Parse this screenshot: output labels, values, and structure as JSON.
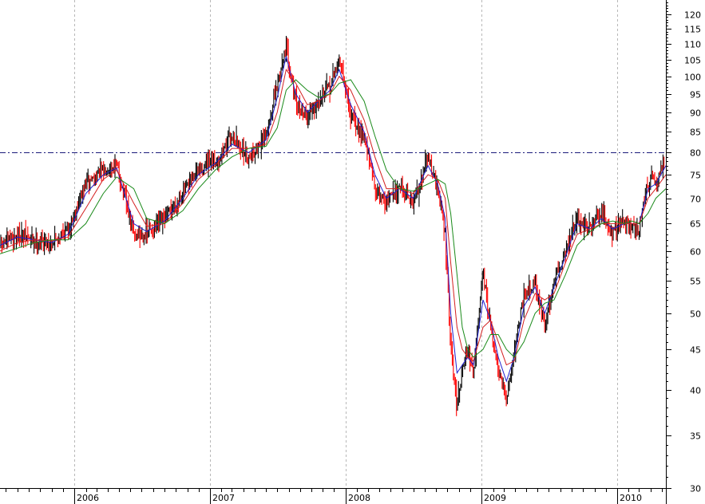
{
  "chart_data": {
    "type": "line",
    "chart_style": "daily OHLC bars with moving averages",
    "title": "",
    "xlabel": "",
    "ylabel": "",
    "y_scale": "log",
    "ylim": [
      30,
      125
    ],
    "xlim": [
      "2005-06-15",
      "2010-05-12"
    ],
    "grid": {
      "vertical_at_years": true,
      "horizontal": false
    },
    "y_ticks": [
      30,
      35,
      40,
      45,
      50,
      55,
      60,
      65,
      70,
      75,
      80,
      85,
      90,
      95,
      100,
      105,
      110,
      115,
      120
    ],
    "x_tick_labels": [
      "2006",
      "2007",
      "2008",
      "2009",
      "2010"
    ],
    "x_tick_dates": [
      "2006-01-01",
      "2007-01-01",
      "2008-01-01",
      "2009-01-01",
      "2010-01-01"
    ],
    "reference_line": {
      "value": 80,
      "style": "dash-dot",
      "color": "#1a1a7a"
    },
    "colors": {
      "up_bar": "#000000",
      "down_bar": "#ff0000",
      "ma_fast": "#1f1fcf",
      "ma_mid": "#d42020",
      "ma_slow": "#1a8a1a",
      "grid": "#b8b8b8"
    },
    "series": [
      {
        "style": "price",
        "x": [
          "2005-06-15",
          "2005-08-01",
          "2005-09-15",
          "2005-11-01",
          "2005-12-15",
          "2006-02-01",
          "2006-03-20",
          "2006-04-25",
          "2006-06-10",
          "2006-07-15",
          "2006-09-01",
          "2006-10-20",
          "2006-12-01",
          "2007-01-15",
          "2007-03-01",
          "2007-04-15",
          "2007-06-01",
          "2007-07-01",
          "2007-07-25",
          "2007-08-20",
          "2007-09-20",
          "2007-10-20",
          "2007-11-20",
          "2007-12-15",
          "2008-01-15",
          "2008-02-20",
          "2008-03-20",
          "2008-04-20",
          "2008-05-25",
          "2008-07-01",
          "2008-08-10",
          "2008-09-05",
          "2008-09-25",
          "2008-10-10",
          "2008-10-27",
          "2008-11-10",
          "2008-11-25",
          "2008-12-10",
          "2009-01-05",
          "2009-01-25",
          "2009-02-15",
          "2009-03-09",
          "2009-03-30",
          "2009-04-25",
          "2009-05-25",
          "2009-06-20",
          "2009-07-15",
          "2009-08-15",
          "2009-09-15",
          "2009-10-20",
          "2009-11-20",
          "2009-12-20",
          "2010-01-20",
          "2010-02-10",
          "2010-03-01",
          "2010-03-25",
          "2010-04-15",
          "2010-05-12"
        ],
        "values": [
          61,
          63,
          62,
          61.5,
          64,
          73,
          76,
          77,
          63,
          63,
          66,
          71,
          76,
          78,
          84,
          79,
          84,
          97,
          110,
          92,
          89,
          94,
          97,
          105,
          89,
          84,
          72,
          69,
          73,
          69,
          79,
          72,
          63,
          45,
          38,
          43,
          45,
          42,
          56,
          48,
          42,
          39,
          45,
          53,
          55,
          48,
          55,
          60,
          66,
          64,
          67,
          63,
          66,
          64,
          64,
          74,
          73,
          79
        ]
      },
      {
        "name": "",
        "style": "ma_fast",
        "x": [
          "2005-06-15",
          "2005-08-01",
          "2005-09-15",
          "2005-11-01",
          "2005-12-15",
          "2006-02-01",
          "2006-03-20",
          "2006-04-25",
          "2006-06-10",
          "2006-07-15",
          "2006-09-01",
          "2006-10-20",
          "2006-12-01",
          "2007-01-15",
          "2007-03-01",
          "2007-04-15",
          "2007-06-01",
          "2007-07-01",
          "2007-07-25",
          "2007-08-20",
          "2007-09-20",
          "2007-10-20",
          "2007-11-20",
          "2007-12-15",
          "2008-01-15",
          "2008-02-20",
          "2008-03-20",
          "2008-04-20",
          "2008-05-25",
          "2008-07-01",
          "2008-08-10",
          "2008-09-05",
          "2008-09-25",
          "2008-10-10",
          "2008-10-27",
          "2008-11-10",
          "2008-11-25",
          "2008-12-10",
          "2009-01-05",
          "2009-01-25",
          "2009-02-15",
          "2009-03-09",
          "2009-03-30",
          "2009-04-25",
          "2009-05-25",
          "2009-06-20",
          "2009-07-15",
          "2009-08-15",
          "2009-09-15",
          "2009-10-20",
          "2009-11-20",
          "2009-12-20",
          "2010-01-20",
          "2010-02-10",
          "2010-03-01",
          "2010-03-25",
          "2010-04-15",
          "2010-05-12"
        ],
        "values": [
          61,
          62.5,
          62,
          61.5,
          63,
          71,
          75,
          76.5,
          65,
          63.5,
          65.5,
          70,
          75,
          77.5,
          82,
          80,
          83,
          94,
          106,
          95,
          90,
          93,
          96,
          102,
          92,
          85,
          75,
          70,
          72,
          70,
          77,
          73,
          66,
          50,
          42,
          43,
          44,
          43,
          52,
          49,
          44,
          41,
          44,
          51,
          54,
          50,
          54,
          59,
          65,
          64,
          66,
          64,
          65,
          65,
          65,
          72,
          73,
          77
        ]
      },
      {
        "name": "",
        "style": "ma_mid",
        "x": [
          "2005-06-15",
          "2005-08-01",
          "2005-09-15",
          "2005-11-01",
          "2005-12-15",
          "2006-02-01",
          "2006-03-20",
          "2006-04-25",
          "2006-06-10",
          "2006-07-15",
          "2006-09-01",
          "2006-10-20",
          "2006-12-01",
          "2007-01-15",
          "2007-03-01",
          "2007-04-15",
          "2007-06-01",
          "2007-07-01",
          "2007-07-25",
          "2007-08-20",
          "2007-09-20",
          "2007-10-20",
          "2007-11-20",
          "2007-12-15",
          "2008-01-15",
          "2008-02-20",
          "2008-03-20",
          "2008-04-20",
          "2008-05-25",
          "2008-07-01",
          "2008-08-10",
          "2008-09-05",
          "2008-09-25",
          "2008-10-10",
          "2008-10-27",
          "2008-11-10",
          "2008-11-25",
          "2008-12-10",
          "2009-01-05",
          "2009-01-25",
          "2009-02-15",
          "2009-03-09",
          "2009-03-30",
          "2009-04-25",
          "2009-05-25",
          "2009-06-20",
          "2009-07-15",
          "2009-08-15",
          "2009-09-15",
          "2009-10-20",
          "2009-11-20",
          "2009-12-20",
          "2010-01-20",
          "2010-02-10",
          "2010-03-01",
          "2010-03-25",
          "2010-04-15",
          "2010-05-12"
        ],
        "values": [
          60,
          61.5,
          62,
          61.8,
          62.5,
          68,
          74,
          76,
          69,
          64.5,
          65,
          69,
          74,
          77,
          81,
          81,
          82,
          90,
          102,
          98,
          92,
          93,
          95,
          100,
          96,
          88,
          79,
          72,
          72,
          71,
          75,
          74,
          70,
          58,
          48,
          45,
          44,
          43.5,
          48,
          49,
          46,
          43,
          43.5,
          49,
          53,
          52,
          53,
          58,
          63,
          64,
          65,
          65,
          65,
          65,
          65,
          70,
          72,
          75
        ]
      },
      {
        "name": "",
        "style": "ma_slow",
        "x": [
          "2005-06-15",
          "2005-08-01",
          "2005-09-15",
          "2005-11-01",
          "2005-12-15",
          "2006-02-01",
          "2006-03-20",
          "2006-04-25",
          "2006-06-10",
          "2006-07-15",
          "2006-09-01",
          "2006-10-20",
          "2006-12-01",
          "2007-01-15",
          "2007-03-01",
          "2007-04-15",
          "2007-06-01",
          "2007-07-01",
          "2007-07-25",
          "2007-08-20",
          "2007-09-20",
          "2007-10-20",
          "2007-11-20",
          "2007-12-15",
          "2008-01-15",
          "2008-02-20",
          "2008-03-20",
          "2008-04-20",
          "2008-05-25",
          "2008-07-01",
          "2008-08-10",
          "2008-09-05",
          "2008-09-25",
          "2008-10-10",
          "2008-10-27",
          "2008-11-10",
          "2008-11-25",
          "2008-12-10",
          "2009-01-05",
          "2009-01-25",
          "2009-02-15",
          "2009-03-09",
          "2009-03-30",
          "2009-04-25",
          "2009-05-25",
          "2009-06-20",
          "2009-07-15",
          "2009-08-15",
          "2009-09-15",
          "2009-10-20",
          "2009-11-20",
          "2009-12-20",
          "2010-01-20",
          "2010-02-10",
          "2010-03-01",
          "2010-03-25",
          "2010-04-15",
          "2010-05-12"
        ],
        "values": [
          59.5,
          60.5,
          61.5,
          62,
          62,
          65,
          71,
          74.5,
          72,
          66,
          65,
          67.5,
          72,
          76,
          79,
          81,
          81.5,
          86,
          96,
          99,
          96,
          94,
          95,
          98,
          99,
          93,
          84,
          76,
          72,
          71.5,
          73,
          74,
          73,
          67,
          56,
          48,
          45,
          44,
          45,
          47,
          47,
          45,
          44,
          46,
          50,
          51.5,
          52,
          56,
          61,
          63.5,
          65,
          65.5,
          65,
          65.5,
          65,
          67,
          70,
          72
        ]
      }
    ]
  }
}
